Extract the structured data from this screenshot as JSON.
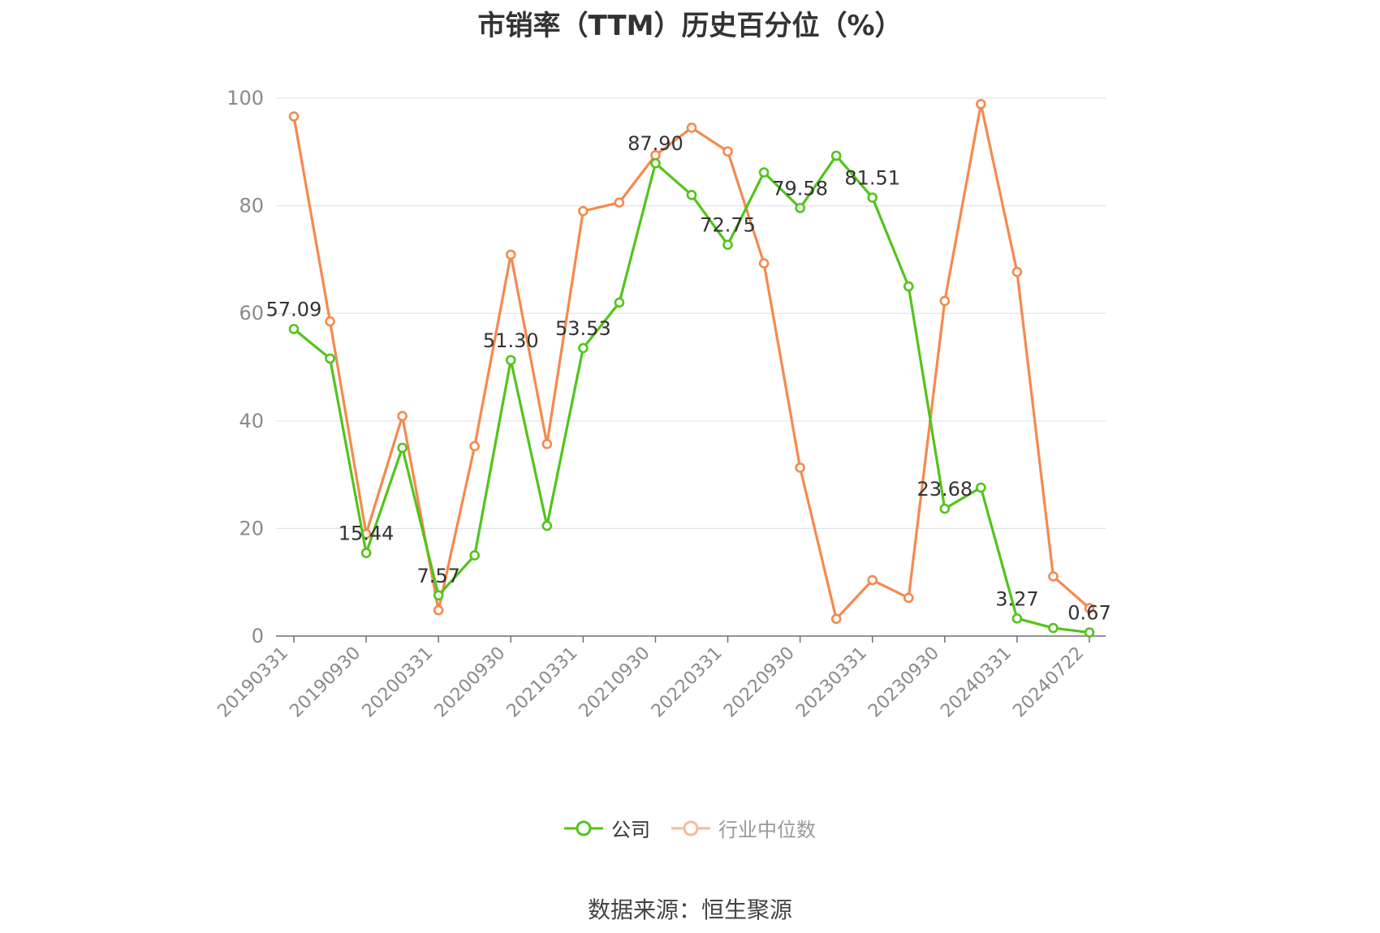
{
  "chart_data": {
    "type": "line",
    "title": "市销率（TTM）历史百分位（%）",
    "source": "数据来源：恒生聚源",
    "ylim": [
      0,
      100
    ],
    "y_ticks": [
      0,
      20,
      40,
      60,
      80,
      100
    ],
    "grid": true,
    "legend_position": "bottom",
    "x": [
      "20190331",
      "20190630",
      "20190930",
      "20191231",
      "20200331",
      "20200630",
      "20200930",
      "20201231",
      "20210331",
      "20210630",
      "20210930",
      "20211231",
      "20220331",
      "20220630",
      "20220930",
      "20221231",
      "20230331",
      "20230630",
      "20230930",
      "20231231",
      "20240331",
      "20240630",
      "20240722"
    ],
    "x_tick_labels": [
      "20190331",
      "20190930",
      "20200331",
      "20200930",
      "20210331",
      "20210930",
      "20220331",
      "20220930",
      "20230331",
      "20230930",
      "20240331",
      "20240722"
    ],
    "series": [
      {
        "name": "公司",
        "color": "#52c41a",
        "values": [
          57.09,
          51.6,
          15.44,
          35.0,
          7.57,
          15.0,
          51.3,
          20.5,
          53.53,
          62.0,
          87.9,
          82.0,
          72.75,
          86.2,
          79.58,
          89.3,
          81.51,
          65.0,
          23.68,
          27.6,
          3.27,
          1.5,
          0.67
        ],
        "data_labels": {
          "0": "57.09",
          "2": "15.44",
          "4": "7.57",
          "6": "51.30",
          "8": "53.53",
          "10": "87.90",
          "12": "72.75",
          "14": "79.58",
          "16": "81.51",
          "18": "23.68",
          "20": "3.27",
          "22": "0.67"
        }
      },
      {
        "name": "行业中位数",
        "color": "#f5894e",
        "legend_color": "#f9b896",
        "values": [
          96.6,
          58.5,
          19.0,
          40.9,
          4.8,
          35.3,
          70.9,
          35.7,
          79.0,
          80.6,
          89.4,
          94.5,
          90.1,
          69.3,
          31.3,
          3.2,
          10.4,
          7.1,
          62.3,
          98.9,
          67.7,
          11.1,
          5.2
        ]
      }
    ]
  }
}
